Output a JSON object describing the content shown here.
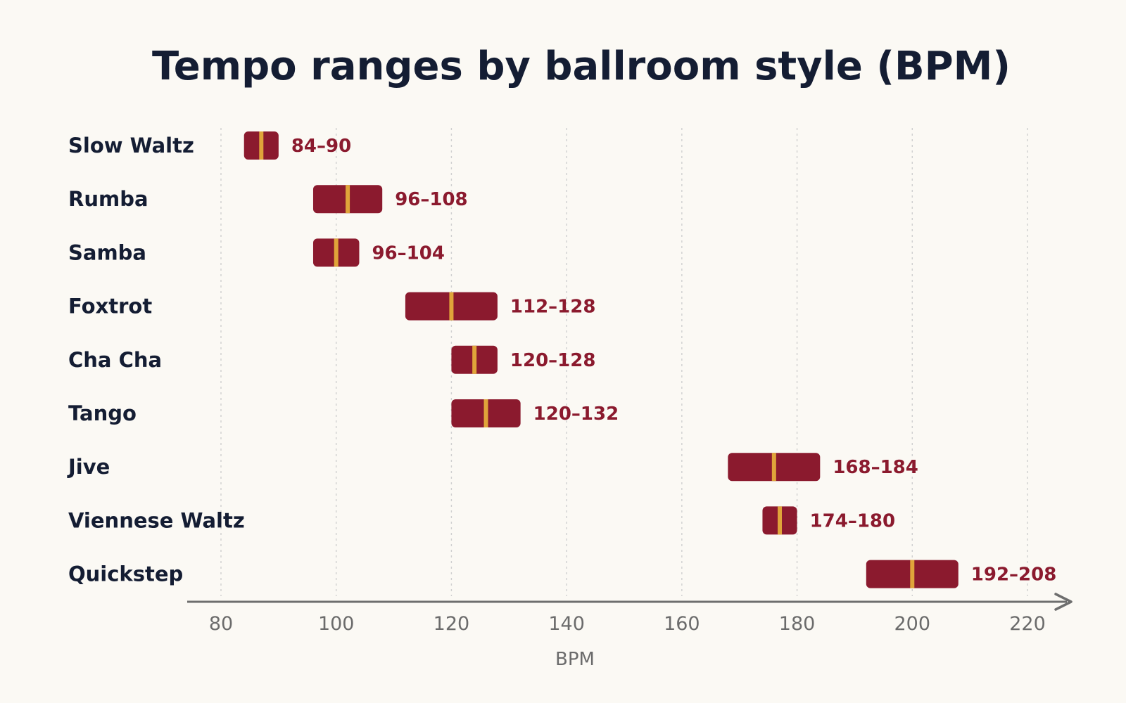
{
  "chart_data": {
    "type": "bar",
    "title": "Tempo ranges by ballroom style (BPM)",
    "xlabel": "BPM",
    "ylabel": "",
    "xlim": [
      80,
      220
    ],
    "x_ticks": [
      80,
      100,
      120,
      140,
      160,
      180,
      200,
      220
    ],
    "grid": true,
    "orientation": "horizontal-range",
    "categories": [
      "Slow Waltz",
      "Rumba",
      "Samba",
      "Foxtrot",
      "Cha Cha",
      "Tango",
      "Jive",
      "Viennese Waltz",
      "Quickstep"
    ],
    "ranges": [
      {
        "min": 84,
        "max": 90,
        "label": "84–90"
      },
      {
        "min": 96,
        "max": 108,
        "label": "96–108"
      },
      {
        "min": 96,
        "max": 104,
        "label": "96–104"
      },
      {
        "min": 112,
        "max": 128,
        "label": "112–128"
      },
      {
        "min": 120,
        "max": 128,
        "label": "120–128"
      },
      {
        "min": 120,
        "max": 132,
        "label": "120–132"
      },
      {
        "min": 168,
        "max": 184,
        "label": "168–184"
      },
      {
        "min": 174,
        "max": 180,
        "label": "174–180"
      },
      {
        "min": 192,
        "max": 208,
        "label": "192–208"
      }
    ],
    "colors": {
      "bar": "#8b1a2e",
      "midpoint_marker": "#e0a43a",
      "value_label": "#8b1a2e",
      "category_label": "#141d33",
      "axis": "#6e6e6e",
      "grid": "#cfcfcf",
      "background": "#fbf9f4"
    }
  }
}
